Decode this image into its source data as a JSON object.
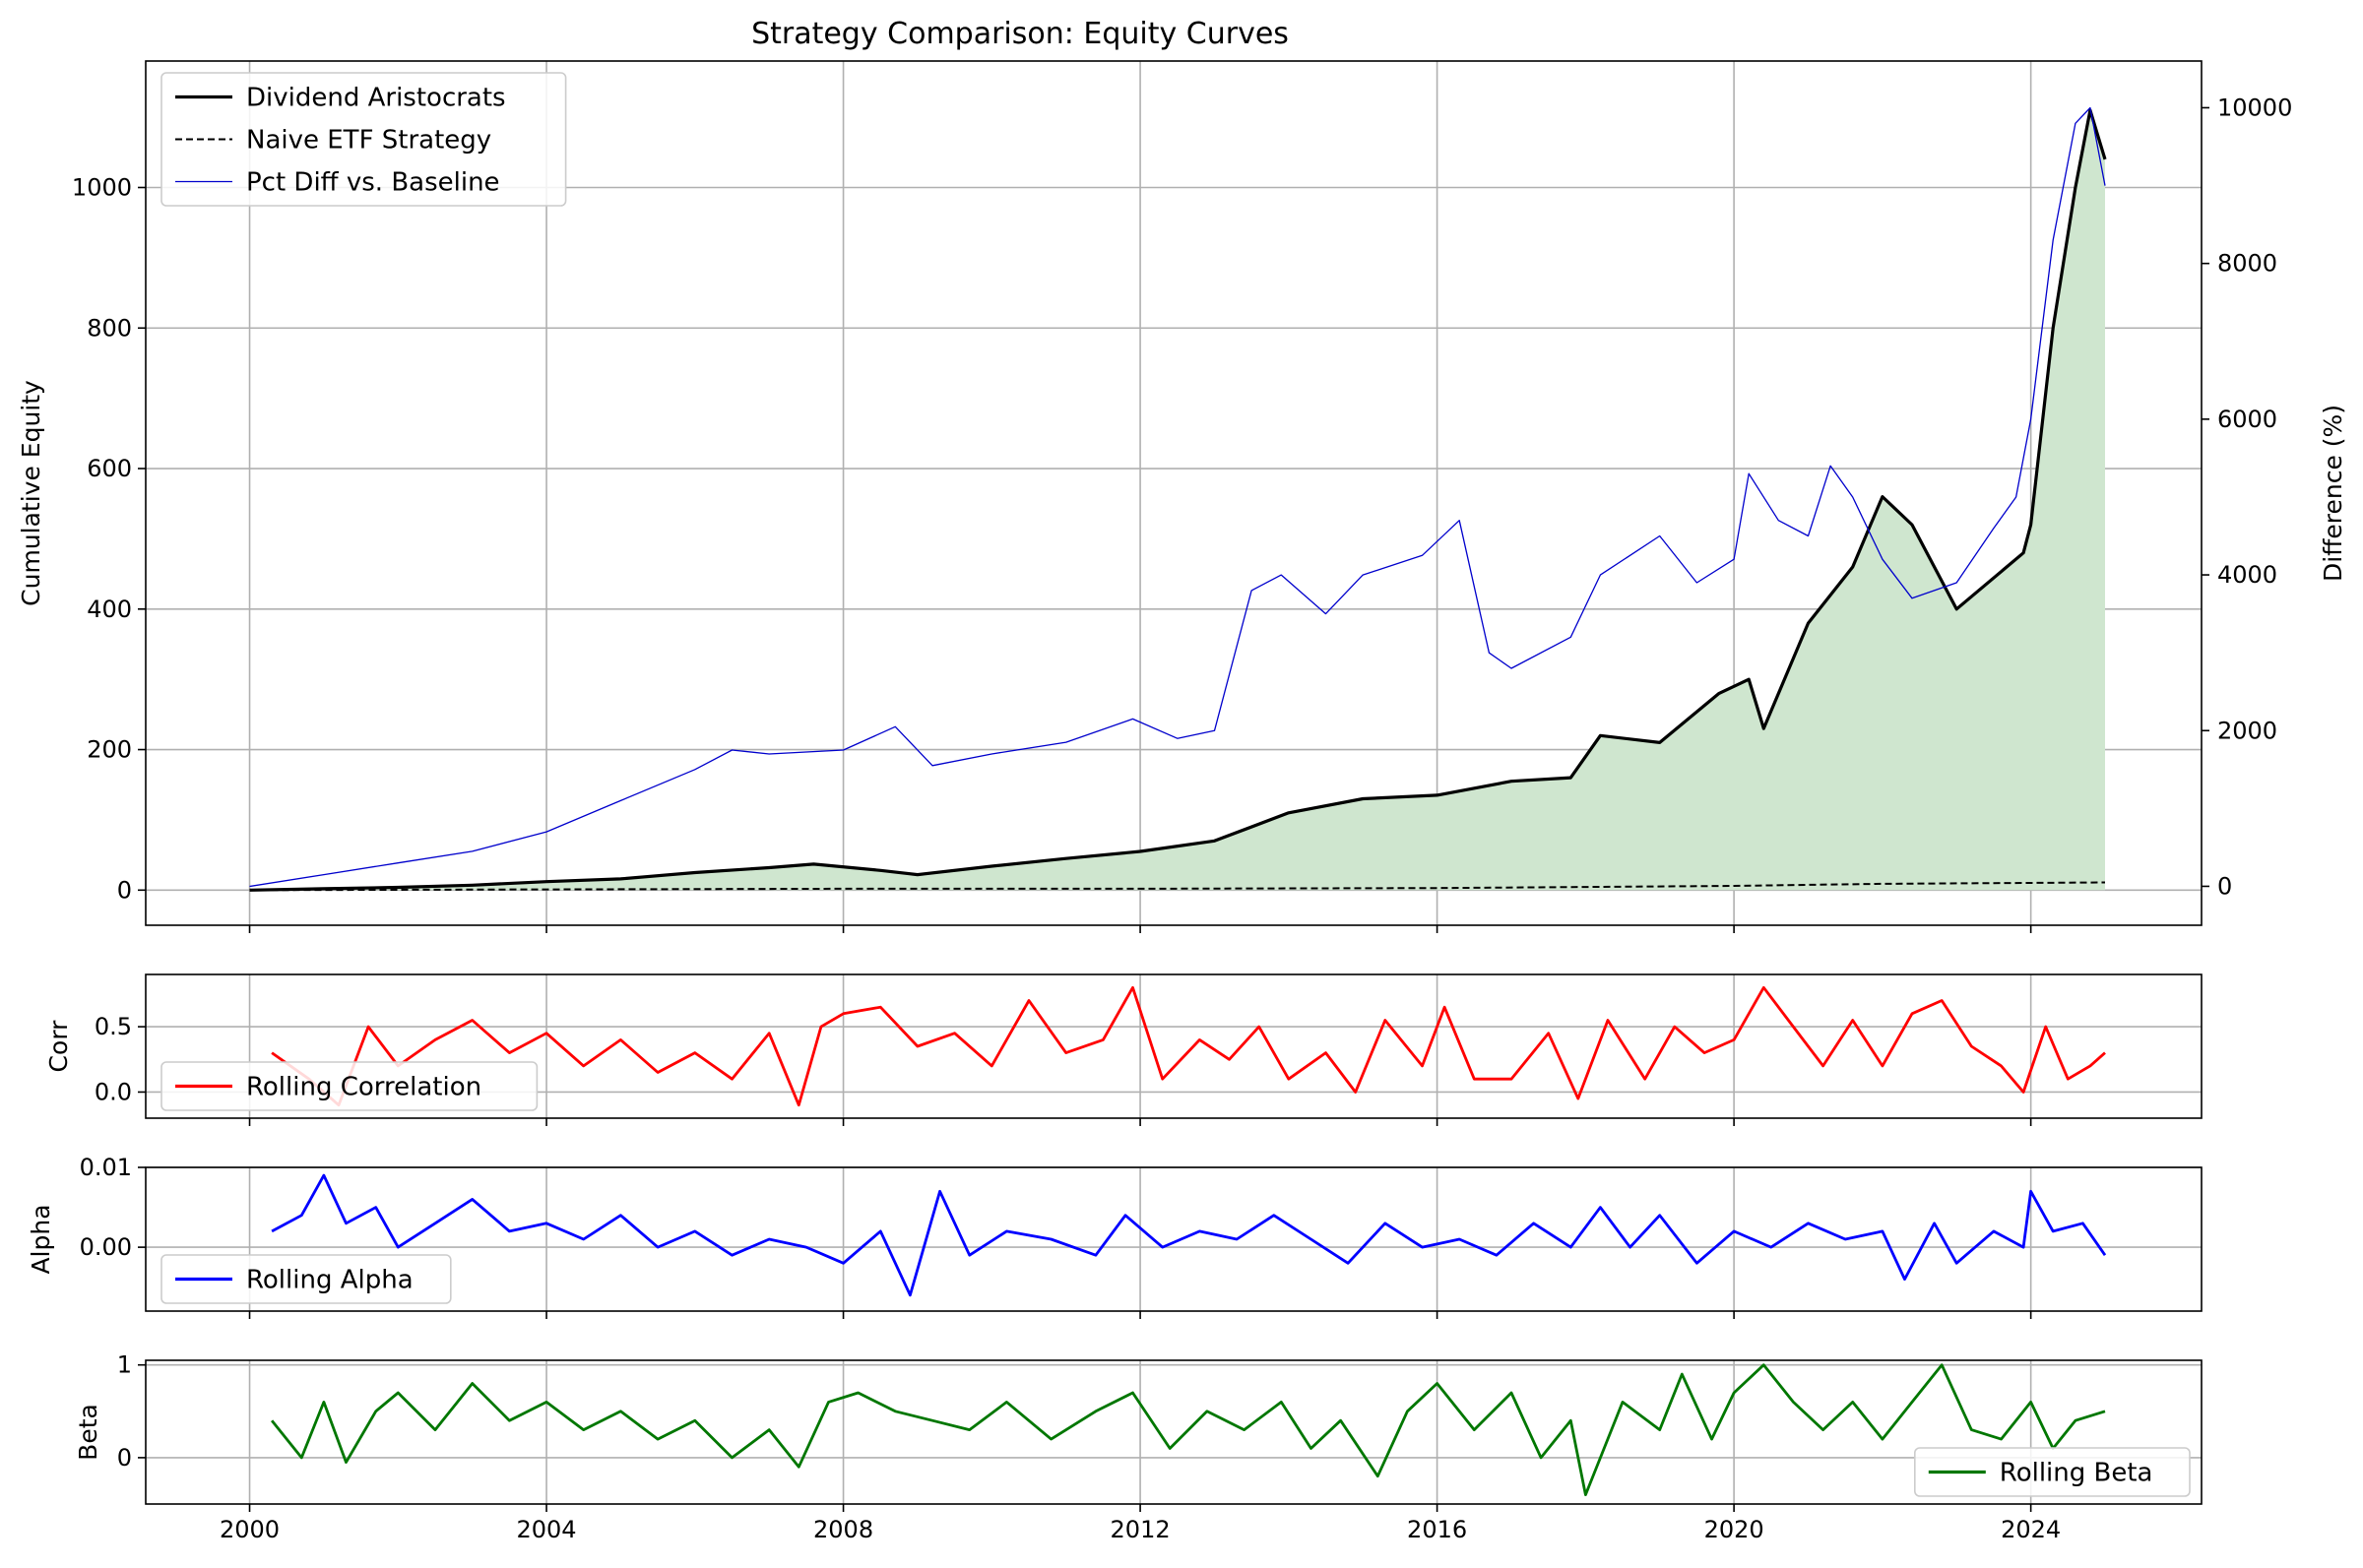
{
  "figure": {
    "title": "Strategy Comparison: Equity Curves"
  },
  "colors": {
    "dividend": "#000000",
    "naive": "#000000",
    "pct_diff": "#0000cc",
    "fill": "#cfe6cf",
    "corr": "#ff0000",
    "alpha": "#0000ff",
    "beta": "#007700",
    "grid": "#b0b0b0"
  },
  "chart_data": [
    {
      "type": "line",
      "panel": "equity",
      "title": "Strategy Comparison: Equity Curves",
      "ylabel": "Cumulative Equity",
      "y2label": "Difference (%)",
      "xlim": [
        1998.6,
        2026.3
      ],
      "ylim": [
        -50,
        1180
      ],
      "y2lim": [
        -500,
        10600
      ],
      "x_ticks": [
        2000,
        2004,
        2008,
        2012,
        2016,
        2020,
        2024
      ],
      "x_tick_labels": [
        "2000",
        "2004",
        "2008",
        "2012",
        "2016",
        "2020",
        "2024"
      ],
      "y_ticks": [
        0,
        200,
        400,
        600,
        800,
        1000
      ],
      "y_tick_labels": [
        "0",
        "200",
        "400",
        "600",
        "800",
        "1000"
      ],
      "y2_ticks": [
        0,
        2000,
        4000,
        6000,
        8000,
        10000
      ],
      "y2_tick_labels": [
        "0",
        "2000",
        "4000",
        "6000",
        "8000",
        "10000"
      ],
      "grid": true,
      "legend_position": "top-left",
      "series": [
        {
          "name": "Dividend Aristocrats",
          "style": "solid",
          "x": [
            2000.0,
            2001.0,
            2002.0,
            2003.0,
            2004.0,
            2005.0,
            2006.0,
            2007.0,
            2007.6,
            2008.5,
            2009.0,
            2010.0,
            2011.0,
            2012.0,
            2013.0,
            2014.0,
            2015.0,
            2016.0,
            2017.0,
            2017.8,
            2018.2,
            2019.0,
            2019.8,
            2020.2,
            2020.4,
            2021.0,
            2021.6,
            2022.0,
            2022.4,
            2023.0,
            2023.9,
            2024.0,
            2024.3,
            2024.6,
            2024.8,
            2025.0
          ],
          "values": [
            0,
            2,
            4,
            7,
            12,
            16,
            25,
            32,
            37,
            28,
            22,
            34,
            45,
            55,
            70,
            110,
            130,
            135,
            155,
            160,
            220,
            210,
            280,
            300,
            230,
            380,
            460,
            560,
            520,
            400,
            480,
            520,
            800,
            1000,
            1110,
            1040
          ]
        },
        {
          "name": "Naive ETF Strategy",
          "style": "dashed",
          "x": [
            2000,
            2004,
            2008,
            2012,
            2016,
            2020,
            2022,
            2025
          ],
          "values": [
            0,
            1,
            2,
            2,
            3,
            6,
            9,
            11
          ]
        },
        {
          "name": "Pct Diff vs. Baseline",
          "axis": "right",
          "style": "thin",
          "x": [
            2000.0,
            2001.0,
            2002.0,
            2003.0,
            2004.0,
            2005.0,
            2006.0,
            2006.5,
            2007.0,
            2008.0,
            2008.7,
            2009.2,
            2010.0,
            2011.0,
            2011.9,
            2012.5,
            2013.0,
            2013.5,
            2013.9,
            2014.5,
            2015.0,
            2015.8,
            2016.3,
            2016.7,
            2017.0,
            2017.8,
            2018.2,
            2019.0,
            2019.5,
            2020.0,
            2020.2,
            2020.6,
            2021.0,
            2021.3,
            2021.6,
            2022.0,
            2022.4,
            2023.0,
            2023.5,
            2023.8,
            2024.0,
            2024.3,
            2024.6,
            2024.8,
            2025.0
          ],
          "values": [
            0,
            150,
            300,
            450,
            700,
            1100,
            1500,
            1750,
            1700,
            1750,
            2050,
            1550,
            1700,
            1850,
            2150,
            1900,
            2000,
            3800,
            4000,
            3500,
            4000,
            4250,
            4700,
            3000,
            2800,
            3200,
            4000,
            4500,
            3900,
            4200,
            5300,
            4700,
            4500,
            5400,
            5000,
            4200,
            3700,
            3900,
            4600,
            5000,
            6000,
            8300,
            9800,
            10000,
            9000
          ]
        }
      ],
      "fill_between": {
        "series": "Dividend Aristocrats",
        "baseline": 0
      }
    },
    {
      "type": "line",
      "panel": "correlation",
      "ylabel": "Corr",
      "ylim": [
        -0.2,
        0.9
      ],
      "y_ticks": [
        0.0,
        0.5
      ],
      "y_tick_labels": [
        "0.0",
        "0.5"
      ],
      "grid": true,
      "legend_position": "lower-left",
      "series": [
        {
          "name": "Rolling Correlation",
          "x": [
            2000.3,
            2000.8,
            2001.2,
            2001.6,
            2002.0,
            2002.5,
            2003.0,
            2003.5,
            2004.0,
            2004.5,
            2005.0,
            2005.5,
            2006.0,
            2006.5,
            2007.0,
            2007.4,
            2007.7,
            2008.0,
            2008.5,
            2009.0,
            2009.5,
            2010.0,
            2010.5,
            2011.0,
            2011.5,
            2011.9,
            2012.3,
            2012.8,
            2013.2,
            2013.6,
            2014.0,
            2014.5,
            2014.9,
            2015.3,
            2015.8,
            2016.1,
            2016.5,
            2017.0,
            2017.5,
            2017.9,
            2018.3,
            2018.8,
            2019.2,
            2019.6,
            2020.0,
            2020.4,
            2020.8,
            2021.2,
            2021.6,
            2022.0,
            2022.4,
            2022.8,
            2023.2,
            2023.6,
            2023.9,
            2024.2,
            2024.5,
            2024.8,
            2025.0
          ],
          "values": [
            0.3,
            0.1,
            -0.1,
            0.5,
            0.2,
            0.4,
            0.55,
            0.3,
            0.45,
            0.2,
            0.4,
            0.15,
            0.3,
            0.1,
            0.45,
            -0.1,
            0.5,
            0.6,
            0.65,
            0.35,
            0.45,
            0.2,
            0.7,
            0.3,
            0.4,
            0.8,
            0.1,
            0.4,
            0.25,
            0.5,
            0.1,
            0.3,
            0.0,
            0.55,
            0.2,
            0.65,
            0.1,
            0.1,
            0.45,
            -0.05,
            0.55,
            0.1,
            0.5,
            0.3,
            0.4,
            0.8,
            0.5,
            0.2,
            0.55,
            0.2,
            0.6,
            0.7,
            0.35,
            0.2,
            0.0,
            0.5,
            0.1,
            0.2,
            0.3
          ]
        }
      ]
    },
    {
      "type": "line",
      "panel": "alpha",
      "ylabel": "Alpha",
      "ylim": [
        -0.008,
        0.01
      ],
      "y_ticks": [
        0.0,
        0.01
      ],
      "y_tick_labels": [
        "0.00",
        "0.01"
      ],
      "grid": true,
      "legend_position": "lower-left",
      "series": [
        {
          "name": "Rolling Alpha",
          "x": [
            2000.3,
            2000.7,
            2001.0,
            2001.3,
            2001.7,
            2002.0,
            2002.5,
            2003.0,
            2003.5,
            2004.0,
            2004.5,
            2005.0,
            2005.5,
            2006.0,
            2006.5,
            2007.0,
            2007.5,
            2008.0,
            2008.5,
            2008.9,
            2009.3,
            2009.7,
            2010.2,
            2010.8,
            2011.4,
            2011.8,
            2012.3,
            2012.8,
            2013.3,
            2013.8,
            2014.3,
            2014.8,
            2015.3,
            2015.8,
            2016.3,
            2016.8,
            2017.3,
            2017.8,
            2018.2,
            2018.6,
            2019.0,
            2019.5,
            2020.0,
            2020.5,
            2021.0,
            2021.5,
            2022.0,
            2022.3,
            2022.7,
            2023.0,
            2023.5,
            2023.9,
            2024.0,
            2024.3,
            2024.7,
            2025.0
          ],
          "values": [
            0.002,
            0.004,
            0.009,
            0.003,
            0.005,
            0.0,
            0.003,
            0.006,
            0.002,
            0.003,
            0.001,
            0.004,
            0.0,
            0.002,
            -0.001,
            0.001,
            0.0,
            -0.002,
            0.002,
            -0.006,
            0.007,
            -0.001,
            0.002,
            0.001,
            -0.001,
            0.004,
            0.0,
            0.002,
            0.001,
            0.004,
            0.001,
            -0.002,
            0.003,
            0.0,
            0.001,
            -0.001,
            0.003,
            0.0,
            0.005,
            0.0,
            0.004,
            -0.002,
            0.002,
            0.0,
            0.003,
            0.001,
            0.002,
            -0.004,
            0.003,
            -0.002,
            0.002,
            0.0,
            0.007,
            0.002,
            0.003,
            -0.001
          ]
        }
      ]
    },
    {
      "type": "line",
      "panel": "beta",
      "ylabel": "Beta",
      "ylim": [
        -0.5,
        1.05
      ],
      "y_ticks": [
        0,
        1
      ],
      "y_tick_labels": [
        "0",
        "1"
      ],
      "grid": true,
      "legend_position": "lower-right",
      "series": [
        {
          "name": "Rolling Beta",
          "x": [
            2000.3,
            2000.7,
            2001.0,
            2001.3,
            2001.7,
            2002.0,
            2002.5,
            2003.0,
            2003.5,
            2004.0,
            2004.5,
            2005.0,
            2005.5,
            2006.0,
            2006.5,
            2007.0,
            2007.4,
            2007.8,
            2008.2,
            2008.7,
            2009.2,
            2009.7,
            2010.2,
            2010.8,
            2011.4,
            2011.9,
            2012.4,
            2012.9,
            2013.4,
            2013.9,
            2014.3,
            2014.7,
            2015.2,
            2015.6,
            2016.0,
            2016.5,
            2017.0,
            2017.4,
            2017.8,
            2018.0,
            2018.5,
            2019.0,
            2019.3,
            2019.7,
            2020.0,
            2020.4,
            2020.8,
            2021.2,
            2021.6,
            2022.0,
            2022.4,
            2022.8,
            2023.2,
            2023.6,
            2024.0,
            2024.3,
            2024.6,
            2025.0
          ],
          "values": [
            0.4,
            0.0,
            0.6,
            -0.05,
            0.5,
            0.7,
            0.3,
            0.8,
            0.4,
            0.6,
            0.3,
            0.5,
            0.2,
            0.4,
            0.0,
            0.3,
            -0.1,
            0.6,
            0.7,
            0.5,
            0.4,
            0.3,
            0.6,
            0.2,
            0.5,
            0.7,
            0.1,
            0.5,
            0.3,
            0.6,
            0.1,
            0.4,
            -0.2,
            0.5,
            0.8,
            0.3,
            0.7,
            0.0,
            0.4,
            -0.4,
            0.6,
            0.3,
            0.9,
            0.2,
            0.7,
            1.0,
            0.6,
            0.3,
            0.6,
            0.2,
            0.6,
            1.0,
            0.3,
            0.2,
            0.6,
            0.1,
            0.4,
            0.5
          ]
        }
      ]
    }
  ]
}
